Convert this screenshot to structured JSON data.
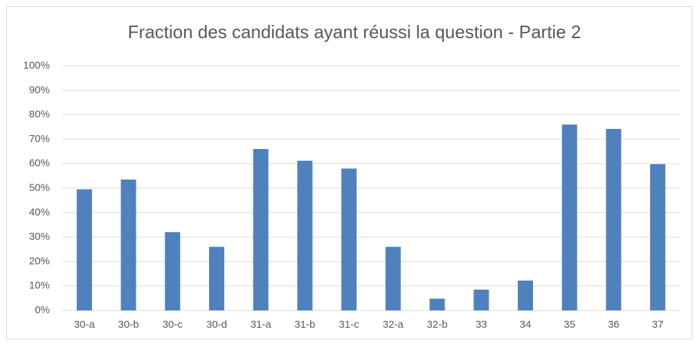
{
  "chart_data": {
    "type": "bar",
    "title": "Fraction des candidats ayant réussi la question - Partie 2",
    "categories": [
      "30-a",
      "30-b",
      "30-c",
      "30-d",
      "31-a",
      "31-b",
      "31-c",
      "32-a",
      "32-b",
      "33",
      "34",
      "35",
      "36",
      "37"
    ],
    "values": [
      49.5,
      53.5,
      32,
      26,
      66,
      61.2,
      58,
      26,
      4.8,
      8.5,
      12.2,
      76,
      74.2,
      59.8
    ],
    "color": "#4f81bd",
    "ylim": [
      0,
      100
    ],
    "yticks": [
      {
        "value": 0,
        "label": "0%"
      },
      {
        "value": 10,
        "label": "10%"
      },
      {
        "value": 20,
        "label": "20%"
      },
      {
        "value": 30,
        "label": "30%"
      },
      {
        "value": 40,
        "label": "40%"
      },
      {
        "value": 50,
        "label": "50%"
      },
      {
        "value": 60,
        "label": "60%"
      },
      {
        "value": 70,
        "label": "70%"
      },
      {
        "value": 80,
        "label": "80%"
      },
      {
        "value": 90,
        "label": "90%"
      },
      {
        "value": 100,
        "label": "100%"
      }
    ],
    "grid": true
  }
}
